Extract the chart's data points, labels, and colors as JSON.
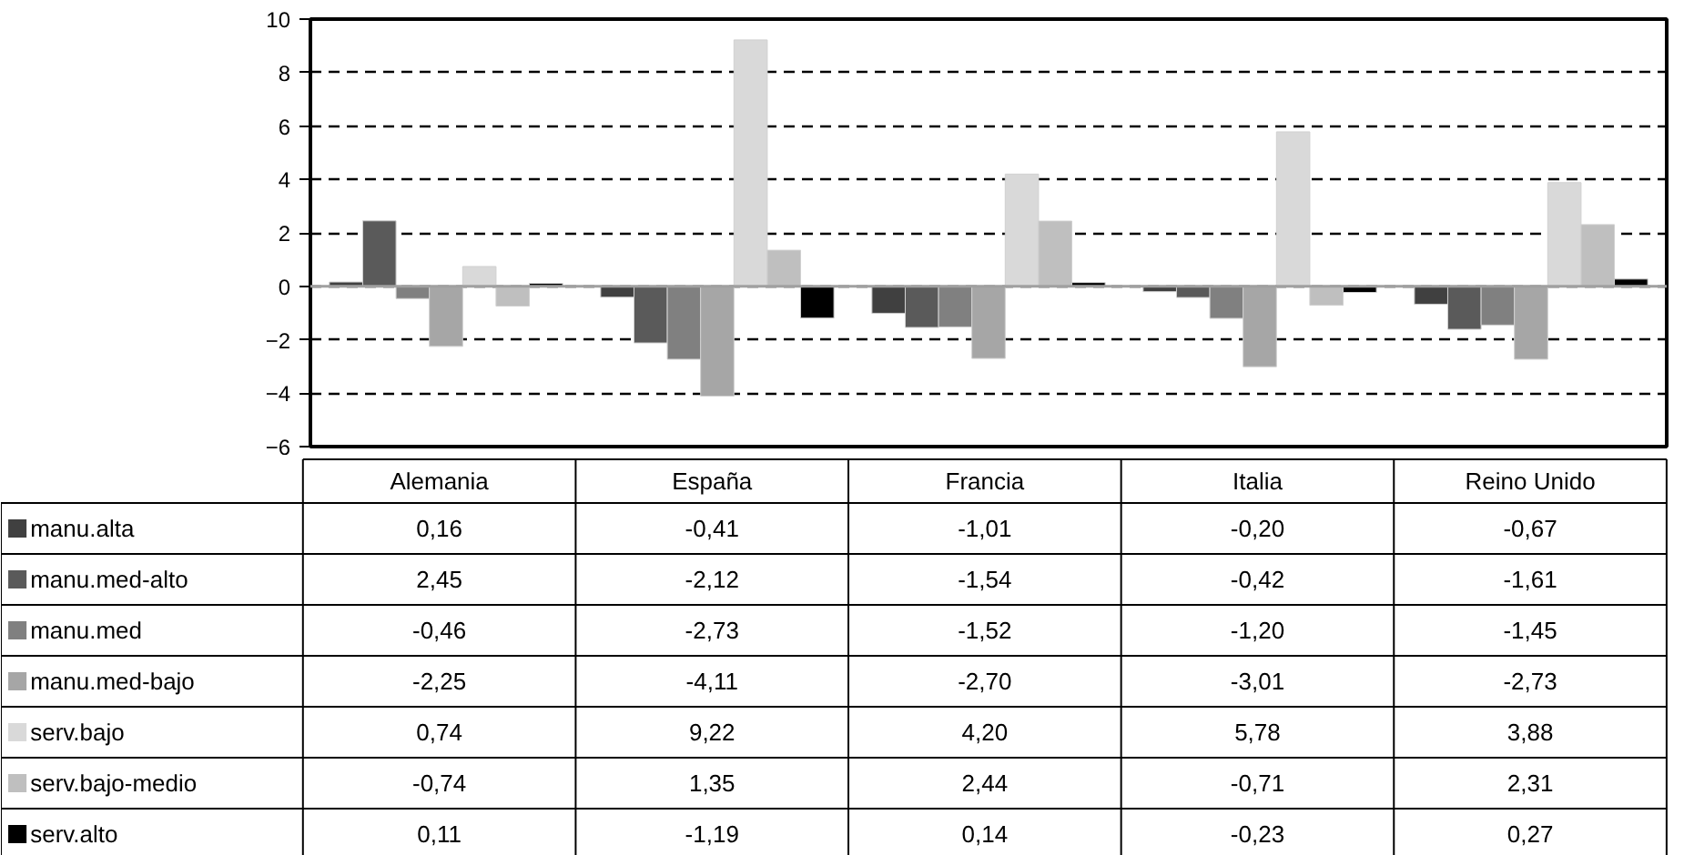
{
  "chart_data": {
    "type": "bar",
    "categories": [
      "Alemania",
      "España",
      "Francia",
      "Italia",
      "Reino Unido"
    ],
    "series": [
      {
        "name": "manu.alta",
        "color": "#404040",
        "values": [
          0.16,
          -0.41,
          -1.01,
          -0.2,
          -0.67
        ],
        "value_labels": [
          "0,16",
          "-0,41",
          "-1,01",
          "-0,20",
          "-0,67"
        ]
      },
      {
        "name": "manu.med-alto",
        "color": "#5a5a5a",
        "values": [
          2.45,
          -2.12,
          -1.54,
          -0.42,
          -1.61
        ],
        "value_labels": [
          "2,45",
          "-2,12",
          "-1,54",
          "-0,42",
          "-1,61"
        ]
      },
      {
        "name": "manu.med",
        "color": "#808080",
        "values": [
          -0.46,
          -2.73,
          -1.52,
          -1.2,
          -1.45
        ],
        "value_labels": [
          "-0,46",
          "-2,73",
          "-1,52",
          "-1,20",
          "-1,45"
        ]
      },
      {
        "name": "manu.med-bajo",
        "color": "#a6a6a6",
        "values": [
          -2.25,
          -4.11,
          -2.7,
          -3.01,
          -2.73
        ],
        "value_labels": [
          "-2,25",
          "-4,11",
          "-2,70",
          "-3,01",
          "-2,73"
        ]
      },
      {
        "name": "serv.bajo",
        "color": "#d9d9d9",
        "values": [
          0.74,
          9.22,
          4.2,
          5.78,
          3.88
        ],
        "value_labels": [
          "0,74",
          "9,22",
          "4,20",
          "5,78",
          "3,88"
        ]
      },
      {
        "name": "serv.bajo-medio",
        "color": "#bfbfbf",
        "values": [
          -0.74,
          1.35,
          2.44,
          -0.71,
          2.31
        ],
        "value_labels": [
          "-0,74",
          "1,35",
          "2,44",
          "-0,71",
          "2,31"
        ]
      },
      {
        "name": "serv.alto",
        "color": "#000000",
        "values": [
          0.11,
          -1.19,
          0.14,
          -0.23,
          0.27
        ],
        "value_labels": [
          "0,11",
          "-1,19",
          "0,14",
          "-0,23",
          "0,27"
        ]
      }
    ],
    "ylim": [
      -6,
      10
    ],
    "yticks": [
      -6,
      -4,
      -2,
      0,
      2,
      4,
      6,
      8,
      10
    ],
    "grid": "y",
    "line_style": "dashed",
    "legend": "bottom"
  }
}
